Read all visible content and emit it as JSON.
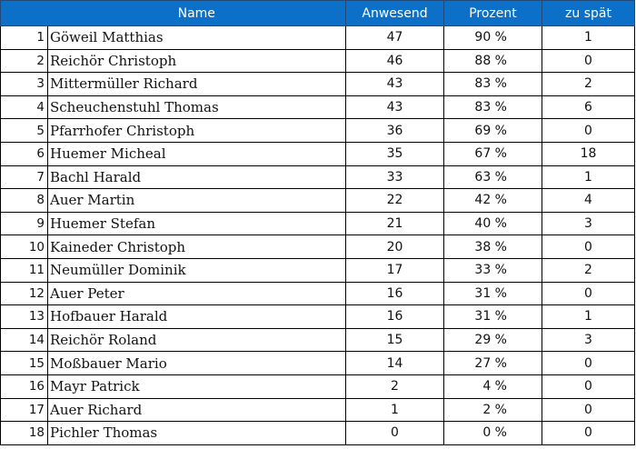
{
  "header": {
    "col_index": "",
    "col_name": "Name",
    "col_anwesend": "Anwesend",
    "col_prozent": "Prozent",
    "col_zu_spaet": "zu spät"
  },
  "colors": {
    "header_bg": "#0d70c8",
    "header_text": "#ffffff",
    "grid": "#000000"
  },
  "rows": [
    {
      "index": "1",
      "name": "Göweil Matthias",
      "anwesend": "47",
      "prozent": "90 %",
      "zu_spaet": "1"
    },
    {
      "index": "2",
      "name": "Reichör Christoph",
      "anwesend": "46",
      "prozent": "88 %",
      "zu_spaet": "0"
    },
    {
      "index": "3",
      "name": "Mittermüller Richard",
      "anwesend": "43",
      "prozent": "83 %",
      "zu_spaet": "2"
    },
    {
      "index": "4",
      "name": "Scheuchenstuhl Thomas",
      "anwesend": "43",
      "prozent": "83 %",
      "zu_spaet": "6"
    },
    {
      "index": "5",
      "name": "Pfarrhofer Christoph",
      "anwesend": "36",
      "prozent": "69 %",
      "zu_spaet": "0"
    },
    {
      "index": "6",
      "name": "Huemer Micheal",
      "anwesend": "35",
      "prozent": "67 %",
      "zu_spaet": "18"
    },
    {
      "index": "7",
      "name": "Bachl Harald",
      "anwesend": "33",
      "prozent": "63 %",
      "zu_spaet": "1"
    },
    {
      "index": "8",
      "name": "Auer Martin",
      "anwesend": "22",
      "prozent": "42 %",
      "zu_spaet": "4"
    },
    {
      "index": "9",
      "name": "Huemer Stefan",
      "anwesend": "21",
      "prozent": "40 %",
      "zu_spaet": "3"
    },
    {
      "index": "10",
      "name": "Kaineder Christoph",
      "anwesend": "20",
      "prozent": "38 %",
      "zu_spaet": "0"
    },
    {
      "index": "11",
      "name": "Neumüller Dominik",
      "anwesend": "17",
      "prozent": "33 %",
      "zu_spaet": "2"
    },
    {
      "index": "12",
      "name": "Auer Peter",
      "anwesend": "16",
      "prozent": "31 %",
      "zu_spaet": "0"
    },
    {
      "index": "13",
      "name": "Hofbauer Harald",
      "anwesend": "16",
      "prozent": "31 %",
      "zu_spaet": "1"
    },
    {
      "index": "14",
      "name": "Reichör Roland",
      "anwesend": "15",
      "prozent": "29 %",
      "zu_spaet": "3"
    },
    {
      "index": "15",
      "name": "Moßbauer Mario",
      "anwesend": "14",
      "prozent": "27 %",
      "zu_spaet": "0"
    },
    {
      "index": "16",
      "name": "Mayr Patrick",
      "anwesend": "2",
      "prozent": "4 %",
      "zu_spaet": "0"
    },
    {
      "index": "17",
      "name": "Auer Richard",
      "anwesend": "1",
      "prozent": "2 %",
      "zu_spaet": "0"
    },
    {
      "index": "18",
      "name": "Pichler Thomas",
      "anwesend": "0",
      "prozent": "0 %",
      "zu_spaet": "0"
    }
  ]
}
